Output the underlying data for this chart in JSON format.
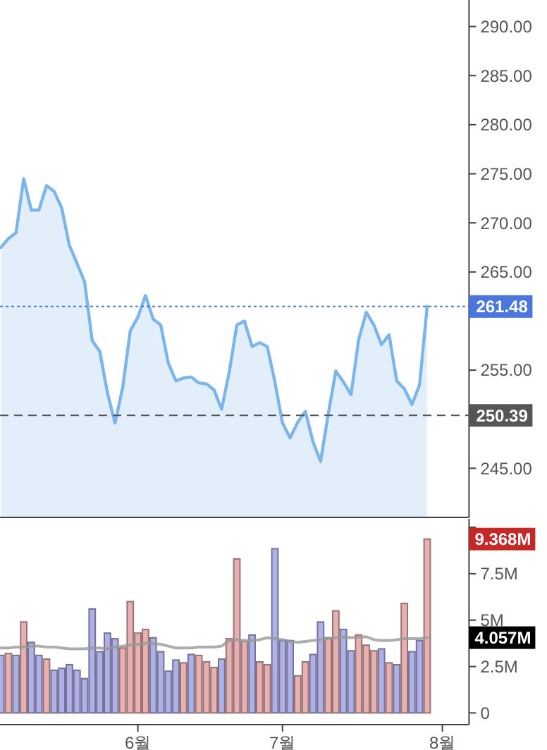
{
  "chart_data": [
    {
      "type": "area",
      "categories": [
        null,
        null,
        null,
        null,
        null,
        null,
        null,
        null,
        null,
        null,
        null,
        null,
        null,
        null,
        null,
        null,
        null,
        null,
        null,
        null,
        null,
        null,
        null,
        null,
        null,
        null,
        null,
        null,
        null,
        null,
        null,
        null,
        null,
        null,
        null,
        null,
        null,
        null,
        null,
        null,
        null,
        null,
        null,
        null,
        null,
        null,
        null,
        null,
        null,
        null,
        null,
        null,
        null,
        null,
        null,
        null,
        null
      ],
      "tick_labels": "y",
      "series": [
        {
          "color": "#7cb5ec",
          "values": [
            267.5,
            268.4,
            269.0,
            274.5,
            271.3,
            271.3,
            273.8,
            273.2,
            271.5,
            267.7,
            265.9,
            264.0,
            258.0,
            256.9,
            252.7,
            249.6,
            253.2,
            259.0,
            260.4,
            262.6,
            260.2,
            259.6,
            255.7,
            253.9,
            254.2,
            254.3,
            253.7,
            253.6,
            253.0,
            251.0,
            254.8,
            259.6,
            260.0,
            257.4,
            257.8,
            257.4,
            253.8,
            249.6,
            248.1,
            249.7,
            250.8,
            247.7,
            245.7,
            250.5,
            254.9,
            253.8,
            252.5,
            258.1,
            260.9,
            259.6,
            257.6,
            258.6,
            253.9,
            253.1,
            251.5,
            253.5,
            261.48
          ]
        }
      ],
      "ylim": [
        240,
        292.7
      ],
      "yticks": [
        {
          "value": 245,
          "label": "245.00"
        },
        {
          "value": 255,
          "label": "255.00"
        },
        {
          "value": 265,
          "label": "265.00"
        },
        {
          "value": 270,
          "label": "270.00"
        },
        {
          "value": 275,
          "label": "275.00"
        },
        {
          "value": 280,
          "label": "280.00"
        },
        {
          "value": 285,
          "label": "285.00"
        },
        {
          "value": 290,
          "label": "290.00"
        }
      ],
      "ref_lines": [
        {
          "axis": "y",
          "value": 261.48,
          "label": "261.48",
          "color": "#4a76e0",
          "line_style": "dotted"
        },
        {
          "axis": "y",
          "value": 250.39,
          "label": "250.39",
          "color": "#555555",
          "line_style": "dashed"
        }
      ]
    },
    {
      "type": "bar",
      "categories": [
        null,
        null,
        null,
        null,
        null,
        null,
        null,
        null,
        null,
        null,
        null,
        null,
        null,
        null,
        null,
        null,
        null,
        null,
        "6월",
        null,
        null,
        null,
        null,
        null,
        null,
        null,
        null,
        null,
        null,
        null,
        null,
        null,
        null,
        null,
        null,
        null,
        null,
        "7월",
        null,
        null,
        null,
        null,
        null,
        null,
        null,
        null,
        null,
        null,
        null,
        null,
        null,
        null,
        null,
        null,
        null,
        null,
        null,
        null,
        "8월",
        null,
        null,
        null
      ],
      "series": [
        {
          "colors": [
            "#b0b0e8",
            "#e8b0b0",
            "#b0b0e8",
            "#e8b0b0",
            "#b0b0e8",
            "#b0b0e8",
            "#e8b0b0",
            "#b0b0e8",
            "#b0b0e8",
            "#b0b0e8",
            "#b0b0e8",
            "#b0b0e8",
            "#b0b0e8",
            "#b0b0e8",
            "#b0b0e8",
            "#b0b0e8",
            "#e8b0b0",
            "#e8b0b0",
            "#e8b0b0",
            "#e8b0b0",
            "#b0b0e8",
            "#b0b0e8",
            "#b0b0e8",
            "#b0b0e8",
            "#e8b0b0",
            "#b0b0e8",
            "#e8b0b0",
            "#e8b0b0",
            "#e8b0b0",
            "#b0b0e8",
            "#e8b0b0",
            "#e8b0b0",
            "#e8b0b0",
            "#b0b0e8",
            "#e8b0b0",
            "#e8b0b0",
            "#b0b0e8",
            "#b0b0e8",
            "#b0b0e8",
            "#e8b0b0",
            "#e8b0b0",
            "#b0b0e8",
            "#b0b0e8",
            "#e8b0b0",
            "#e8b0b0",
            "#b0b0e8",
            "#b0b0e8",
            "#e8b0b0",
            "#e8b0b0",
            "#e8b0b0",
            "#b0b0e8",
            "#e8b0b0",
            "#b0b0e8",
            "#e8b0b0",
            "#b0b0e8",
            "#b0b0e8",
            "#e8b0b0",
            null,
            null,
            null,
            null,
            null
          ],
          "values": [
            3.1,
            3.2,
            3.1,
            4.9,
            3.8,
            3.1,
            2.9,
            2.3,
            2.4,
            2.6,
            2.3,
            1.85,
            5.6,
            3.3,
            4.3,
            4.0,
            3.5,
            6.0,
            4.3,
            4.5,
            4.05,
            3.3,
            2.25,
            2.85,
            2.7,
            3.15,
            3.1,
            2.75,
            2.45,
            2.9,
            4.0,
            8.3,
            3.85,
            4.2,
            2.75,
            2.6,
            8.85,
            3.9,
            3.9,
            2.0,
            2.75,
            3.15,
            4.9,
            4.05,
            5.5,
            4.5,
            3.35,
            4.2,
            3.65,
            3.35,
            3.45,
            2.7,
            2.6,
            5.9,
            3.3,
            3.9,
            9.368,
            null,
            null,
            null,
            null,
            null
          ]
        },
        {
          "type": "line",
          "color": "#999999",
          "values": [
            3.5,
            3.5,
            3.55,
            3.55,
            3.6,
            3.6,
            3.55,
            3.55,
            3.5,
            3.45,
            3.45,
            3.45,
            3.5,
            3.5,
            3.45,
            3.55,
            3.6,
            3.65,
            3.7,
            3.75,
            3.75,
            3.7,
            3.6,
            3.5,
            3.5,
            3.5,
            3.55,
            3.55,
            3.55,
            3.6,
            3.9,
            3.95,
            3.9,
            3.9,
            3.95,
            4.05,
            4.0,
            3.95,
            3.85,
            3.8,
            3.85,
            3.9,
            3.95,
            4.0,
            4.05,
            4.1,
            4.05,
            4.1,
            4.1,
            3.95,
            3.9,
            3.9,
            3.95,
            4.0,
            4.0,
            4.0,
            4.057,
            null,
            null,
            null,
            null,
            null
          ]
        }
      ],
      "ylim": [
        -0.63,
        10.46
      ],
      "yticks": [
        0,
        {
          "value": 2.5,
          "label": "2.5M"
        },
        {
          "value": 5,
          "label": "5M"
        },
        {
          "value": 7.5,
          "label": "7.5M"
        },
        {
          "value": 10,
          "label": null
        }
      ],
      "annotations": [
        "9.368M",
        "4.057M"
      ]
    }
  ]
}
